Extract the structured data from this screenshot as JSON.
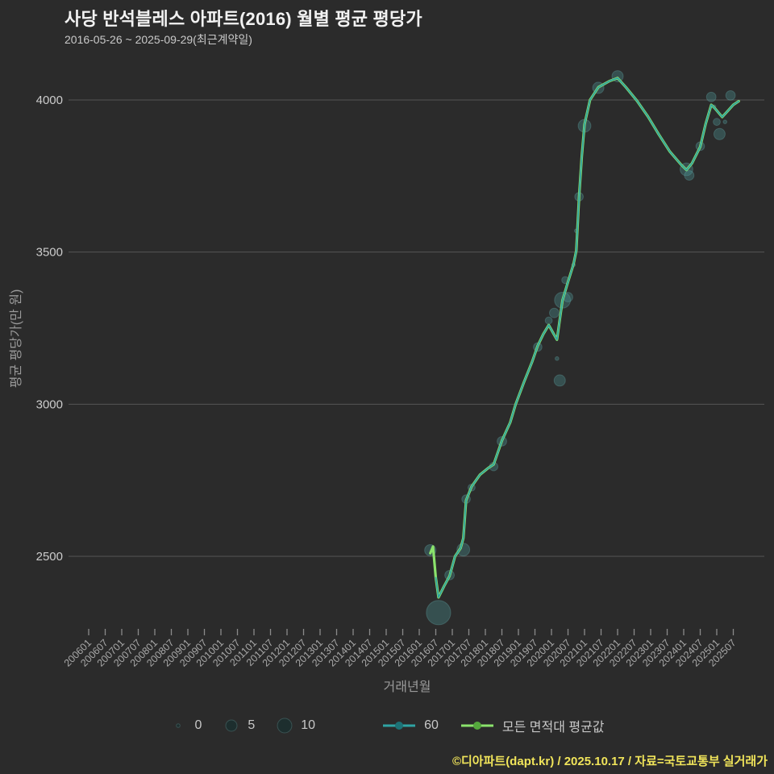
{
  "header": {
    "title": "사당 반석블레스 아파트(2016) 월별 평균 평당가",
    "subtitle": "2016-05-26 ~ 2025-09-29(최근계약일)"
  },
  "axes": {
    "y_label": "평균 평당가(만 원)",
    "x_label": "거래년월",
    "y_ticks": [
      4000,
      3500,
      3000,
      2500
    ],
    "x_ticks": [
      "200601",
      "200607",
      "200701",
      "200707",
      "200801",
      "200807",
      "200901",
      "200907",
      "201001",
      "201007",
      "201101",
      "201107",
      "201201",
      "201207",
      "201301",
      "201307",
      "201401",
      "201407",
      "201501",
      "201507",
      "201601",
      "201607",
      "201701",
      "201707",
      "201801",
      "201807",
      "201901",
      "201907",
      "202001",
      "202007",
      "202101",
      "202107",
      "202201",
      "202207",
      "202301",
      "202307",
      "202401",
      "202407",
      "202501",
      "202507"
    ]
  },
  "legend": {
    "sizes": [
      {
        "label": "0",
        "count": 0
      },
      {
        "label": "5",
        "count": 5
      },
      {
        "label": "10",
        "count": 10
      }
    ],
    "series": [
      {
        "label": "60",
        "color": "#2fa3a3",
        "dot": "#1d7276"
      },
      {
        "label": "모든 면적대 평균값",
        "color": "#8be36c",
        "dot": "#55a83d"
      }
    ]
  },
  "footer": {
    "credit": "©디아파트(dapt.kr) / 2025.10.17 / 자료=국토교통부 실거래가"
  },
  "colors": {
    "background": "#2b2b2b",
    "grid": "#565656",
    "tick_text": "#a8a8a8",
    "y_tick_text": "#cccccc",
    "bubble_fill": "#4a9494",
    "bubble_stroke": "#6fbcbc",
    "line_all": "#8be36c",
    "line_60": "#2fa3a3"
  },
  "chart_data": {
    "type": "line",
    "title": "사당 반석블레스 아파트(2016) 월별 평균 평당가",
    "xlabel": "거래년월",
    "ylabel": "평균 평당가(만 원)",
    "ylim": [
      2250,
      4150
    ],
    "x_range": [
      "200601",
      "202509"
    ],
    "grid": "horizontal-only",
    "legend_position": "bottom",
    "points": [
      [
        "201605",
        2510
      ],
      [
        "201606",
        2532
      ],
      [
        "201607",
        2430
      ],
      [
        "201608",
        2365
      ],
      [
        "201610",
        2402
      ],
      [
        "201612",
        2435
      ],
      [
        "201702",
        2500
      ],
      [
        "201704",
        2527
      ],
      [
        "201705",
        2560
      ],
      [
        "201706",
        2684
      ],
      [
        "201708",
        2729
      ],
      [
        "201711",
        2768
      ],
      [
        "201802",
        2790
      ],
      [
        "201804",
        2802
      ],
      [
        "201807",
        2880
      ],
      [
        "201810",
        2940
      ],
      [
        "201812",
        3000
      ],
      [
        "201903",
        3072
      ],
      [
        "201906",
        3140
      ],
      [
        "201908",
        3192
      ],
      [
        "201910",
        3230
      ],
      [
        "201912",
        3260
      ],
      [
        "202002",
        3228
      ],
      [
        "202003",
        3212
      ],
      [
        "202005",
        3342
      ],
      [
        "202007",
        3402
      ],
      [
        "202009",
        3460
      ],
      [
        "202010",
        3505
      ],
      [
        "202011",
        3680
      ],
      [
        "202012",
        3815
      ],
      [
        "202101",
        3920
      ],
      [
        "202103",
        4000
      ],
      [
        "202106",
        4042
      ],
      [
        "202110",
        4062
      ],
      [
        "202201",
        4072
      ],
      [
        "202204",
        4042
      ],
      [
        "202208",
        3998
      ],
      [
        "202212",
        3946
      ],
      [
        "202304",
        3886
      ],
      [
        "202308",
        3830
      ],
      [
        "202312",
        3788
      ],
      [
        "202402",
        3770
      ],
      [
        "202404",
        3792
      ],
      [
        "202407",
        3846
      ],
      [
        "202409",
        3922
      ],
      [
        "202411",
        3984
      ],
      [
        "202412",
        3976
      ],
      [
        "202503",
        3944
      ],
      [
        "202505",
        3964
      ],
      [
        "202507",
        3984
      ],
      [
        "202509",
        3996
      ]
    ],
    "series": [
      {
        "name": "모든 면적대 평균값",
        "color": "#8be36c",
        "width": 3.2,
        "from_index": 0
      },
      {
        "name": "60",
        "color": "#2fa3a3",
        "width": 1.7,
        "from_index": 2
      }
    ],
    "bubbles": [
      {
        "m": "201605",
        "v": 2520,
        "count": 5
      },
      {
        "m": "201608",
        "v": 2315,
        "count": 37
      },
      {
        "m": "201612",
        "v": 2438,
        "count": 3
      },
      {
        "m": "201705",
        "v": 2522,
        "count": 7
      },
      {
        "m": "201706",
        "v": 2688,
        "count": 2
      },
      {
        "m": "201708",
        "v": 2726,
        "count": 1
      },
      {
        "m": "201804",
        "v": 2795,
        "count": 2
      },
      {
        "m": "201807",
        "v": 2878,
        "count": 3
      },
      {
        "m": "201908",
        "v": 3188,
        "count": 2
      },
      {
        "m": "201912",
        "v": 3275,
        "count": 1
      },
      {
        "m": "202002",
        "v": 3300,
        "count": 3
      },
      {
        "m": "202003",
        "v": 3150,
        "count": 0
      },
      {
        "m": "202004",
        "v": 3078,
        "count": 5
      },
      {
        "m": "202005",
        "v": 3342,
        "count": 13
      },
      {
        "m": "202006",
        "v": 3408,
        "count": 1
      },
      {
        "m": "202007",
        "v": 3352,
        "count": 3
      },
      {
        "m": "202009",
        "v": 3458,
        "count": 0
      },
      {
        "m": "202010",
        "v": 3570,
        "count": 0
      },
      {
        "m": "202011",
        "v": 3682,
        "count": 2
      },
      {
        "m": "202101",
        "v": 3915,
        "count": 7
      },
      {
        "m": "202106",
        "v": 4040,
        "count": 5
      },
      {
        "m": "202201",
        "v": 4078,
        "count": 5
      },
      {
        "m": "202402",
        "v": 3772,
        "count": 7
      },
      {
        "m": "202403",
        "v": 3752,
        "count": 3
      },
      {
        "m": "202407",
        "v": 3848,
        "count": 2
      },
      {
        "m": "202411",
        "v": 4010,
        "count": 3
      },
      {
        "m": "202412",
        "v": 3978,
        "count": 0
      },
      {
        "m": "202501",
        "v": 3928,
        "count": 1
      },
      {
        "m": "202502",
        "v": 3888,
        "count": 5
      },
      {
        "m": "202504",
        "v": 3928,
        "count": 0
      },
      {
        "m": "202506",
        "v": 4015,
        "count": 3
      }
    ],
    "bubble_size_legend": {
      "0": 2.3,
      "5": 7.0,
      "10": 8.9,
      "radius_formula": "r = 2.3 + 2.1*sqrt(count)"
    }
  }
}
